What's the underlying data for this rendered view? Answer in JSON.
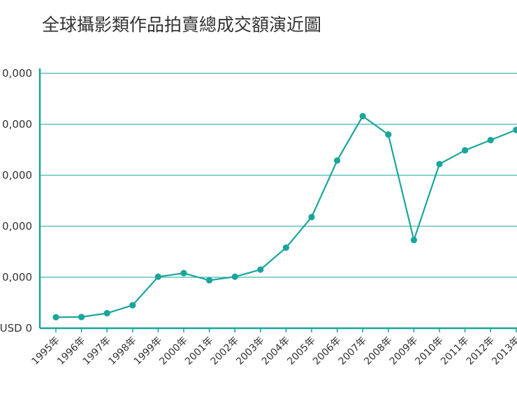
{
  "chart_data": {
    "type": "line",
    "title": "全球攝影類作品拍賣總成交額演近圖",
    "xlabel": "",
    "ylabel": "",
    "categories": [
      "1995年",
      "1996年",
      "1997年",
      "1998年",
      "1999年",
      "2000年",
      "2001年",
      "2002年",
      "2003年",
      "2004年",
      "2005年",
      "2006年",
      "2007年",
      "2008年",
      "2009年",
      "2010年",
      "2011年",
      "2012年",
      "2013年"
    ],
    "values": [
      21500,
      22000,
      29500,
      45000,
      101000,
      108000,
      94000,
      101000,
      115000,
      158000,
      218000,
      329000,
      416000,
      380000,
      173000,
      322000,
      349000,
      369000,
      389000
    ],
    "ylim": [
      0,
      500000
    ],
    "yticks": [
      {
        "value": 0,
        "label": "USD 0"
      },
      {
        "value": 100000,
        "label": "0,000"
      },
      {
        "value": 200000,
        "label": "0,000"
      },
      {
        "value": 300000,
        "label": "0,000"
      },
      {
        "value": 400000,
        "label": "0,000"
      },
      {
        "value": 500000,
        "label": "0,000"
      }
    ],
    "grid": true,
    "colors": {
      "line": "#1aa59a",
      "marker": "#1aa59a",
      "grid": "#45b8ad",
      "axis": "#1aa59a"
    }
  }
}
